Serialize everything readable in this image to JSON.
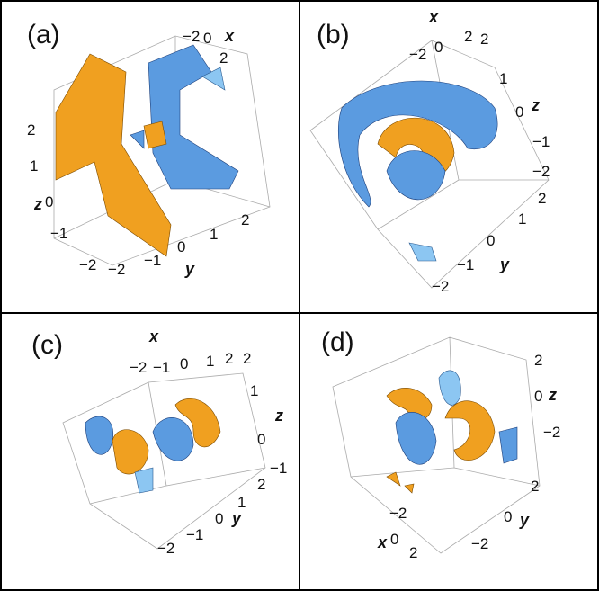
{
  "panels": [
    {
      "label": "(a)",
      "texts": [
        "−2",
        "0",
        "x",
        "2",
        "2",
        "1",
        "z",
        "0",
        "−1",
        "−2",
        "−2",
        "−1",
        "0",
        "1",
        "2",
        "y"
      ]
    },
    {
      "label": "(b)",
      "texts": [
        "x",
        "−2",
        "0",
        "2",
        "2",
        "1",
        "0",
        "z",
        "−1",
        "−2",
        "2",
        "1",
        "0",
        "−1",
        "−2",
        "y"
      ]
    },
    {
      "label": "(c)",
      "texts": [
        "x",
        "−2",
        "−1",
        "0",
        "1",
        "2",
        "2",
        "1",
        "z",
        "0",
        "−1",
        "2",
        "1",
        "0",
        "−1",
        "−2",
        "y"
      ]
    },
    {
      "label": "(d)",
      "texts": [
        "2",
        "0",
        "z",
        "−2",
        "2",
        "0",
        "y",
        "−2",
        "−2",
        "x",
        "0",
        "2"
      ]
    }
  ]
}
